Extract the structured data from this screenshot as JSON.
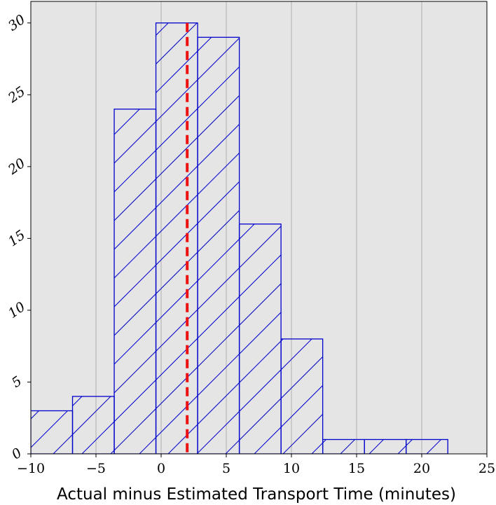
{
  "chart_data": {
    "type": "bar",
    "subtype": "histogram",
    "title": "",
    "xlabel": "Actual minus Estimated Transport Time (minutes)",
    "ylabel": "",
    "xlim": [
      -10,
      25
    ],
    "ylim": [
      0,
      31.5
    ],
    "xticks": [
      -10,
      -5,
      0,
      5,
      10,
      15,
      20,
      25
    ],
    "xtick_labels": [
      "−10",
      "−5",
      "0",
      "5",
      "10",
      "15",
      "20",
      "25"
    ],
    "yticks": [
      0,
      5,
      10,
      15,
      20,
      25,
      30
    ],
    "ytick_labels": [
      "0",
      "5",
      "10",
      "15",
      "20",
      "25",
      "30"
    ],
    "grid": {
      "x": true,
      "y": false
    },
    "bins": [
      {
        "start": -10.0,
        "end": -6.8,
        "count": 3
      },
      {
        "start": -6.8,
        "end": -3.6,
        "count": 4
      },
      {
        "start": -3.6,
        "end": -0.4,
        "count": 24
      },
      {
        "start": -0.4,
        "end": 2.8,
        "count": 30
      },
      {
        "start": 2.8,
        "end": 6.0,
        "count": 29
      },
      {
        "start": 6.0,
        "end": 9.2,
        "count": 16
      },
      {
        "start": 9.2,
        "end": 12.4,
        "count": 8
      },
      {
        "start": 12.4,
        "end": 15.6,
        "count": 1
      },
      {
        "start": 15.6,
        "end": 18.8,
        "count": 1
      },
      {
        "start": 18.8,
        "end": 22.0,
        "count": 1
      }
    ],
    "reference_line": {
      "orientation": "vertical",
      "x": 2.0,
      "style": "dashed"
    },
    "colors": {
      "background": "#e5e5e5",
      "grid": "#b0b0b0",
      "bar_edge": "#0000cc",
      "hatch": "#0000cc",
      "reference_line": "#ee1111"
    }
  }
}
